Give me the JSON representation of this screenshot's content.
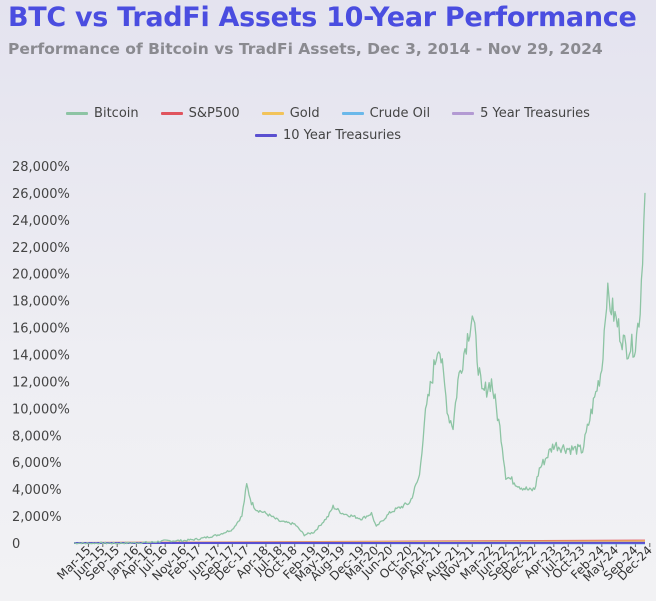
{
  "title": "BTC vs TradFi Assets 10-Year Performance",
  "subtitle": "Performance of Bitcoin vs TradFi Assets, Dec 3, 2014 - Nov 29, 2024",
  "chart_data": {
    "type": "line",
    "ylim": [
      0,
      28000
    ],
    "y_ticks": [
      "0",
      "2,000%",
      "4,000%",
      "6,000%",
      "8,000%",
      "10,000%",
      "12,000%",
      "14,000%",
      "16,000%",
      "18,000%",
      "20,000%",
      "22,000%",
      "24,000%",
      "26,000%",
      "28,000%"
    ],
    "x_ticks": [
      "Mar-15",
      "Jun-15",
      "Sep-15",
      "Jan-16",
      "Apr-16",
      "Jul-16",
      "Nov-16",
      "Feb-17",
      "Jun-17",
      "Sep-17",
      "Dec-17",
      "Apr-18",
      "Jul-18",
      "Oct-18",
      "Feb-19",
      "May-19",
      "Aug-19",
      "Dec-19",
      "Mar-20",
      "Jun-20",
      "Oct-20",
      "Jan-21",
      "Apr-21",
      "Aug-21",
      "Nov-21",
      "Mar-22",
      "Jun-22",
      "Sep-22",
      "Dec-22",
      "Apr-23",
      "Jul-23",
      "Oct-23",
      "Feb-24",
      "May-24",
      "Sep-24",
      "Dec-24"
    ],
    "grid": false,
    "legend_position": "top-center",
    "series": [
      {
        "name": "Bitcoin",
        "color": "#8dc4a4",
        "x": [
          "Dec-14",
          "Mar-15",
          "Jun-15",
          "Sep-15",
          "Jan-16",
          "Apr-16",
          "Jul-16",
          "Nov-16",
          "Feb-17",
          "Jun-17",
          "Sep-17",
          "Nov-17",
          "Dec-17",
          "Jan-18",
          "Feb-18",
          "Apr-18",
          "Jul-18",
          "Oct-18",
          "Dec-18",
          "Feb-19",
          "May-19",
          "Jun-19",
          "Aug-19",
          "Dec-19",
          "Feb-20",
          "Mar-20",
          "Jun-20",
          "Oct-20",
          "Dec-20",
          "Jan-21",
          "Apr-21",
          "Jun-21",
          "Jul-21",
          "Aug-21",
          "Nov-21",
          "Jan-22",
          "Mar-22",
          "May-22",
          "Jun-22",
          "Sep-22",
          "Nov-22",
          "Dec-22",
          "Jan-23",
          "Apr-23",
          "Jul-23",
          "Oct-23",
          "Dec-23",
          "Feb-24",
          "Mar-24",
          "May-24",
          "Jul-24",
          "Sep-24",
          "Oct-24",
          "Nov-24"
        ],
        "values": [
          0,
          -30,
          -10,
          -20,
          20,
          50,
          160,
          180,
          300,
          600,
          1000,
          2000,
          4300,
          3000,
          2500,
          2200,
          1600,
          1400,
          600,
          800,
          2000,
          2700,
          2200,
          1800,
          2200,
          1200,
          2300,
          3000,
          5000,
          9000,
          15000,
          9500,
          8700,
          12000,
          17000,
          11000,
          12000,
          8000,
          5000,
          4200,
          3900,
          4000,
          5500,
          7300,
          7000,
          6900,
          10000,
          13000,
          18500,
          16500,
          14500,
          14700,
          17500,
          26000
        ]
      },
      {
        "name": "S&P500",
        "color": "#e0545e",
        "x": [
          "Dec-14",
          "Nov-24"
        ],
        "values": [
          0,
          180
        ]
      },
      {
        "name": "Gold",
        "color": "#f2c35a",
        "x": [
          "Dec-14",
          "Nov-24"
        ],
        "values": [
          0,
          125
        ]
      },
      {
        "name": "Crude Oil",
        "color": "#6ab8ea",
        "x": [
          "Dec-14",
          "Nov-24"
        ],
        "values": [
          0,
          -30
        ]
      },
      {
        "name": "5 Year Treasuries",
        "color": "#b39ad3",
        "x": [
          "Dec-14",
          "Nov-24"
        ],
        "values": [
          0,
          20
        ]
      },
      {
        "name": "10 Year Treasuries",
        "color": "#5a4fd0",
        "x": [
          "Dec-14",
          "Nov-24"
        ],
        "values": [
          0,
          10
        ]
      }
    ]
  }
}
